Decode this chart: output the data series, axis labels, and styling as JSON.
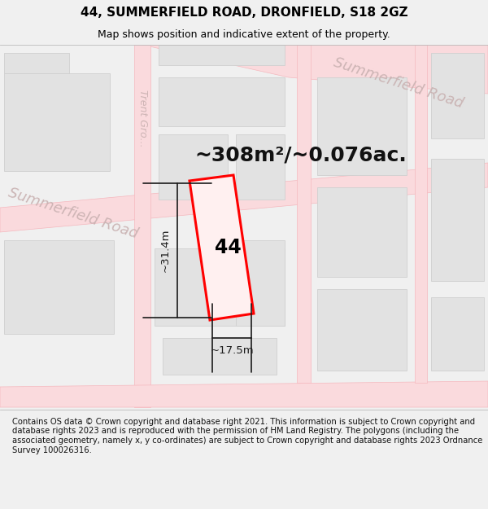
{
  "title": "44, SUMMERFIELD ROAD, DRONFIELD, S18 2GZ",
  "subtitle": "Map shows position and indicative extent of the property.",
  "area_label": "~308m²/~0.076ac.",
  "property_number": "44",
  "dim_height": "~31.4m",
  "dim_width": "~17.5m",
  "footer": "Contains OS data © Crown copyright and database right 2021. This information is subject to Crown copyright and database rights 2023 and is reproduced with the permission of HM Land Registry. The polygons (including the associated geometry, namely x, y co-ordinates) are subject to Crown copyright and database rights 2023 Ordnance Survey 100026316.",
  "bg_color": "#f0f0f0",
  "map_bg": "#ffffff",
  "road_fill": "#fadadd",
  "road_edge": "#f5b8be",
  "building_fill": "#e2e2e2",
  "building_edge": "#d0d0d0",
  "property_fill": "#fff0f0",
  "property_edge": "#ff0000",
  "road_label_color": "#c8b0b0",
  "dim_color": "#1a1a1a",
  "title_color": "#000000",
  "footer_color": "#111111",
  "street_line_color": "#f0a0a8"
}
